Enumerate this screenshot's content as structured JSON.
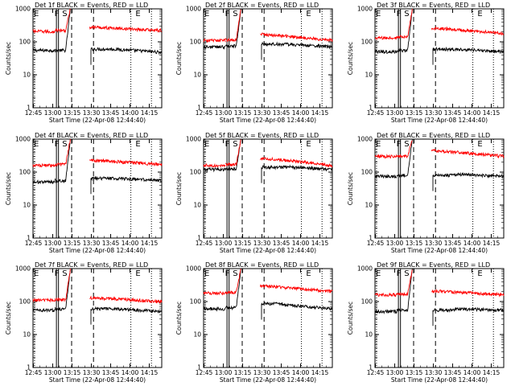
{
  "colors": {
    "events": "#000000",
    "lld": "#ff0000",
    "background": "#ffffff"
  },
  "chart_data": [
    {
      "type": "line",
      "title": "Det 1f BLACK = Events, RED = LLD",
      "xlabel": "Start Time (22-Apr-08 12:44:40)",
      "ylabel": "Counts/sec",
      "x_ticks": [
        "12:45",
        "13:00",
        "13:15",
        "13:30",
        "13:45",
        "14:00",
        "14:15"
      ],
      "y_ticks": [
        "1",
        "10",
        "100",
        "1000"
      ],
      "yscale": "log",
      "ylim": [
        1,
        1000
      ],
      "xlim_minutes": [
        0,
        100
      ],
      "grid": false,
      "event_markers": [
        {
          "label": "E",
          "minute": 0
        },
        {
          "label": "F",
          "minute": 16
        },
        {
          "label": "S",
          "minute": 22
        },
        {
          "label": "E",
          "minute": 79
        }
      ],
      "series": [
        {
          "name": "Events",
          "segments": [
            {
              "x": [
                0,
                17
              ],
              "level": 55
            },
            {
              "x": [
                17,
                29
              ],
              "level": 55,
              "rise_to": 1000
            },
            {
              "x": [
                45,
                62
              ],
              "level": 60
            },
            {
              "x": [
                62,
                100
              ],
              "level": 60,
              "end": 48
            }
          ]
        },
        {
          "name": "LLD",
          "segments": [
            {
              "x": [
                0,
                17
              ],
              "level": 210,
              "end": 200
            },
            {
              "x": [
                17,
                29
              ],
              "level": 220,
              "rise_to": 1000
            },
            {
              "x": [
                44,
                100
              ],
              "level": 280,
              "end": 220
            }
          ]
        }
      ]
    },
    {
      "type": "line",
      "title": "Det 2f BLACK = Events, RED = LLD",
      "xlabel": "Start Time (22-Apr-08 12:44:40)",
      "ylabel": "Counts/sec",
      "x_ticks": [
        "12:45",
        "13:00",
        "13:15",
        "13:30",
        "13:45",
        "14:00",
        "14:15"
      ],
      "y_ticks": [
        "1",
        "10",
        "100",
        "1000"
      ],
      "yscale": "log",
      "ylim": [
        1,
        1000
      ],
      "xlim_minutes": [
        0,
        100
      ],
      "grid": false,
      "event_markers": [
        {
          "label": "E",
          "minute": 0
        },
        {
          "label": "F",
          "minute": 16
        },
        {
          "label": "S",
          "minute": 22
        },
        {
          "label": "E",
          "minute": 79
        }
      ],
      "series": [
        {
          "name": "Events",
          "segments": [
            {
              "x": [
                0,
                17
              ],
              "level": 70
            },
            {
              "x": [
                17,
                29
              ],
              "level": 75,
              "rise_to": 1000
            },
            {
              "x": [
                45,
                62
              ],
              "level": 85
            },
            {
              "x": [
                62,
                100
              ],
              "level": 85,
              "end": 70
            }
          ]
        },
        {
          "name": "LLD",
          "segments": [
            {
              "x": [
                0,
                17
              ],
              "level": 110
            },
            {
              "x": [
                17,
                29
              ],
              "level": 115,
              "rise_to": 1000
            },
            {
              "x": [
                44,
                100
              ],
              "level": 170,
              "end": 110
            }
          ]
        }
      ]
    },
    {
      "type": "line",
      "title": "Det 3f BLACK = Events, RED = LLD",
      "xlabel": "Start Time (22-Apr-08 12:44:40)",
      "ylabel": "Counts/sec",
      "x_ticks": [
        "12:45",
        "13:00",
        "13:15",
        "13:30",
        "13:45",
        "14:00",
        "14:15"
      ],
      "y_ticks": [
        "1",
        "10",
        "100",
        "1000"
      ],
      "yscale": "log",
      "ylim": [
        1,
        1000
      ],
      "xlim_minutes": [
        0,
        100
      ],
      "grid": false,
      "event_markers": [
        {
          "label": "E",
          "minute": 0
        },
        {
          "label": "F",
          "minute": 16
        },
        {
          "label": "S",
          "minute": 22
        },
        {
          "label": "E",
          "minute": 79
        }
      ],
      "series": [
        {
          "name": "Events",
          "segments": [
            {
              "x": [
                0,
                17
              ],
              "level": 50
            },
            {
              "x": [
                17,
                29
              ],
              "level": 55,
              "rise_to": 1000
            },
            {
              "x": [
                45,
                62
              ],
              "level": 60
            },
            {
              "x": [
                62,
                100
              ],
              "level": 60,
              "end": 50
            }
          ]
        },
        {
          "name": "LLD",
          "segments": [
            {
              "x": [
                0,
                17
              ],
              "level": 130
            },
            {
              "x": [
                17,
                29
              ],
              "level": 140,
              "rise_to": 1000
            },
            {
              "x": [
                44,
                100
              ],
              "level": 260,
              "end": 180
            }
          ]
        }
      ]
    },
    {
      "type": "line",
      "title": "Det 4f BLACK = Events, RED = LLD",
      "xlabel": "Start Time (22-Apr-08 12:44:40)",
      "ylabel": "Counts/sec",
      "x_ticks": [
        "12:45",
        "13:00",
        "13:15",
        "13:30",
        "13:45",
        "14:00",
        "14:15"
      ],
      "y_ticks": [
        "1",
        "10",
        "100",
        "1000"
      ],
      "yscale": "log",
      "ylim": [
        1,
        1000
      ],
      "xlim_minutes": [
        0,
        100
      ],
      "grid": false,
      "event_markers": [
        {
          "label": "E",
          "minute": 0
        },
        {
          "label": "F",
          "minute": 16
        },
        {
          "label": "S",
          "minute": 22
        },
        {
          "label": "E",
          "minute": 79
        }
      ],
      "series": [
        {
          "name": "Events",
          "segments": [
            {
              "x": [
                0,
                17
              ],
              "level": 50
            },
            {
              "x": [
                17,
                29
              ],
              "level": 55,
              "rise_to": 1000
            },
            {
              "x": [
                45,
                62
              ],
              "level": 65
            },
            {
              "x": [
                62,
                100
              ],
              "level": 65,
              "end": 55
            }
          ]
        },
        {
          "name": "LLD",
          "segments": [
            {
              "x": [
                0,
                17
              ],
              "level": 160
            },
            {
              "x": [
                17,
                29
              ],
              "level": 170,
              "rise_to": 1000
            },
            {
              "x": [
                44,
                100
              ],
              "level": 230,
              "end": 170
            }
          ]
        }
      ]
    },
    {
      "type": "line",
      "title": "Det 5f BLACK = Events, RED = LLD",
      "xlabel": "Start Time (22-Apr-08 12:44:40)",
      "ylabel": "Counts/sec",
      "x_ticks": [
        "12:45",
        "13:00",
        "13:15",
        "13:30",
        "13:45",
        "14:00",
        "14:15"
      ],
      "y_ticks": [
        "1",
        "10",
        "100",
        "1000"
      ],
      "yscale": "log",
      "ylim": [
        1,
        1000
      ],
      "xlim_minutes": [
        0,
        100
      ],
      "grid": false,
      "event_markers": [
        {
          "label": "E",
          "minute": 0
        },
        {
          "label": "F",
          "minute": 16
        },
        {
          "label": "S",
          "minute": 22
        },
        {
          "label": "E",
          "minute": 79
        }
      ],
      "series": [
        {
          "name": "Events",
          "segments": [
            {
              "x": [
                0,
                17
              ],
              "level": 120
            },
            {
              "x": [
                17,
                29
              ],
              "level": 125,
              "rise_to": 1000
            },
            {
              "x": [
                45,
                62
              ],
              "level": 140
            },
            {
              "x": [
                62,
                100
              ],
              "level": 145,
              "end": 120
            }
          ]
        },
        {
          "name": "LLD",
          "segments": [
            {
              "x": [
                0,
                17
              ],
              "level": 160
            },
            {
              "x": [
                17,
                29
              ],
              "level": 170,
              "rise_to": 1000
            },
            {
              "x": [
                44,
                100
              ],
              "level": 260,
              "end": 160
            }
          ]
        }
      ]
    },
    {
      "type": "line",
      "title": "Det 6f BLACK = Events, RED = LLD",
      "xlabel": "Start Time (22-Apr-08 12:44:40)",
      "ylabel": "Counts/sec",
      "x_ticks": [
        "12:45",
        "13:00",
        "13:15",
        "13:30",
        "13:45",
        "14:00",
        "14:15"
      ],
      "y_ticks": [
        "1",
        "10",
        "100",
        "1000"
      ],
      "yscale": "log",
      "ylim": [
        1,
        1000
      ],
      "xlim_minutes": [
        0,
        100
      ],
      "grid": false,
      "event_markers": [
        {
          "label": "E",
          "minute": 0
        },
        {
          "label": "F",
          "minute": 16
        },
        {
          "label": "S",
          "minute": 22
        },
        {
          "label": "E",
          "minute": 79
        }
      ],
      "series": [
        {
          "name": "Events",
          "segments": [
            {
              "x": [
                0,
                17
              ],
              "level": 75
            },
            {
              "x": [
                17,
                29
              ],
              "level": 80,
              "rise_to": 1000
            },
            {
              "x": [
                45,
                62
              ],
              "level": 80
            },
            {
              "x": [
                62,
                100
              ],
              "level": 85,
              "end": 75
            }
          ]
        },
        {
          "name": "LLD",
          "segments": [
            {
              "x": [
                0,
                17
              ],
              "level": 300
            },
            {
              "x": [
                17,
                29
              ],
              "level": 310,
              "rise_to": 1000
            },
            {
              "x": [
                44,
                100
              ],
              "level": 450,
              "end": 300
            }
          ]
        }
      ]
    },
    {
      "type": "line",
      "title": "Det 7f BLACK = Events, RED = LLD",
      "xlabel": "Start Time (22-Apr-08 12:44:40)",
      "ylabel": "Counts/sec",
      "x_ticks": [
        "12:45",
        "13:00",
        "13:15",
        "13:30",
        "13:45",
        "14:00",
        "14:15"
      ],
      "y_ticks": [
        "1",
        "10",
        "100",
        "1000"
      ],
      "yscale": "log",
      "ylim": [
        1,
        1000
      ],
      "xlim_minutes": [
        0,
        100
      ],
      "grid": false,
      "event_markers": [
        {
          "label": "E",
          "minute": 0
        },
        {
          "label": "F",
          "minute": 16
        },
        {
          "label": "S",
          "minute": 22
        },
        {
          "label": "E",
          "minute": 79
        }
      ],
      "series": [
        {
          "name": "Events",
          "segments": [
            {
              "x": [
                0,
                17
              ],
              "level": 55
            },
            {
              "x": [
                17,
                29
              ],
              "level": 60,
              "rise_to": 1000
            },
            {
              "x": [
                45,
                62
              ],
              "level": 60
            },
            {
              "x": [
                62,
                100
              ],
              "level": 60,
              "end": 50
            }
          ]
        },
        {
          "name": "LLD",
          "segments": [
            {
              "x": [
                0,
                17
              ],
              "level": 110
            },
            {
              "x": [
                17,
                29
              ],
              "level": 115,
              "rise_to": 1000
            },
            {
              "x": [
                44,
                100
              ],
              "level": 130,
              "end": 100
            }
          ]
        }
      ]
    },
    {
      "type": "line",
      "title": "Det 8f BLACK = Events, RED = LLD",
      "xlabel": "Start Time (22-Apr-08 12:44:40)",
      "ylabel": "Counts/sec",
      "x_ticks": [
        "12:45",
        "13:00",
        "13:15",
        "13:30",
        "13:45",
        "14:00",
        "14:15"
      ],
      "y_ticks": [
        "1",
        "10",
        "100",
        "1000"
      ],
      "yscale": "log",
      "ylim": [
        1,
        1000
      ],
      "xlim_minutes": [
        0,
        100
      ],
      "grid": false,
      "event_markers": [
        {
          "label": "E",
          "minute": 0
        },
        {
          "label": "F",
          "minute": 16
        },
        {
          "label": "S",
          "minute": 22
        },
        {
          "label": "E",
          "minute": 79
        }
      ],
      "series": [
        {
          "name": "Events",
          "segments": [
            {
              "x": [
                0,
                17
              ],
              "level": 60
            },
            {
              "x": [
                17,
                29
              ],
              "level": 65,
              "rise_to": 1000
            },
            {
              "x": [
                45,
                62
              ],
              "level": 85
            },
            {
              "x": [
                62,
                100
              ],
              "level": 80,
              "end": 60
            }
          ]
        },
        {
          "name": "LLD",
          "segments": [
            {
              "x": [
                0,
                17
              ],
              "level": 180
            },
            {
              "x": [
                17,
                29
              ],
              "level": 190,
              "rise_to": 1000
            },
            {
              "x": [
                44,
                100
              ],
              "level": 300,
              "end": 200
            }
          ]
        }
      ]
    },
    {
      "type": "line",
      "title": "Det 9f BLACK = Events, RED = LLD",
      "xlabel": "Start Time (22-Apr-08 12:44:40)",
      "ylabel": "Counts/sec",
      "x_ticks": [
        "12:45",
        "13:00",
        "13:15",
        "13:30",
        "13:45",
        "14:00",
        "14:15"
      ],
      "y_ticks": [
        "1",
        "10",
        "100",
        "1000"
      ],
      "yscale": "log",
      "ylim": [
        1,
        1000
      ],
      "xlim_minutes": [
        0,
        100
      ],
      "grid": false,
      "event_markers": [
        {
          "label": "E",
          "minute": 0
        },
        {
          "label": "F",
          "minute": 16
        },
        {
          "label": "S",
          "minute": 22
        },
        {
          "label": "E",
          "minute": 79
        }
      ],
      "series": [
        {
          "name": "Events",
          "segments": [
            {
              "x": [
                0,
                17
              ],
              "level": 50
            },
            {
              "x": [
                17,
                29
              ],
              "level": 55,
              "rise_to": 1000
            },
            {
              "x": [
                45,
                62
              ],
              "level": 55
            },
            {
              "x": [
                62,
                100
              ],
              "level": 60,
              "end": 55
            }
          ]
        },
        {
          "name": "LLD",
          "segments": [
            {
              "x": [
                0,
                17
              ],
              "level": 160
            },
            {
              "x": [
                17,
                29
              ],
              "level": 170,
              "rise_to": 1000
            },
            {
              "x": [
                44,
                100
              ],
              "level": 210,
              "end": 160
            }
          ]
        }
      ]
    }
  ]
}
